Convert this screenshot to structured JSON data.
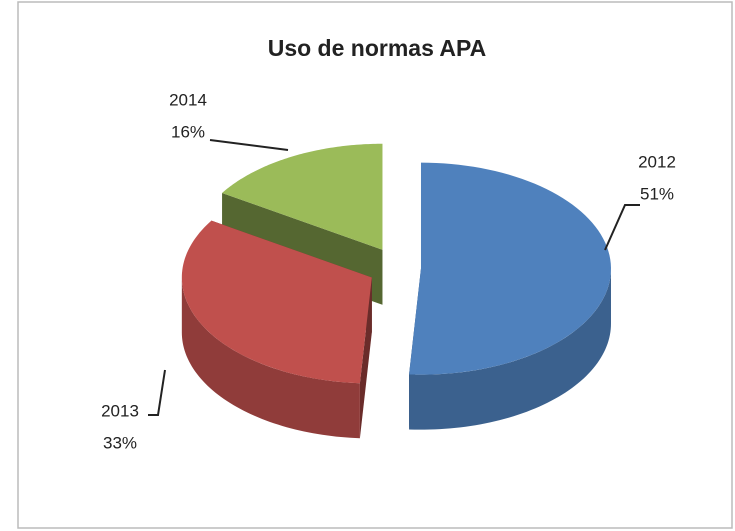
{
  "chart_data": {
    "type": "pie3d",
    "title": "Uso de normas APA",
    "categories": [
      "2012",
      "2013",
      "2014"
    ],
    "values": [
      51,
      33,
      16
    ],
    "value_labels": [
      "51%",
      "33%",
      "16%"
    ],
    "colors": [
      "#4f81bd",
      "#c0504d",
      "#9bbb59"
    ]
  }
}
